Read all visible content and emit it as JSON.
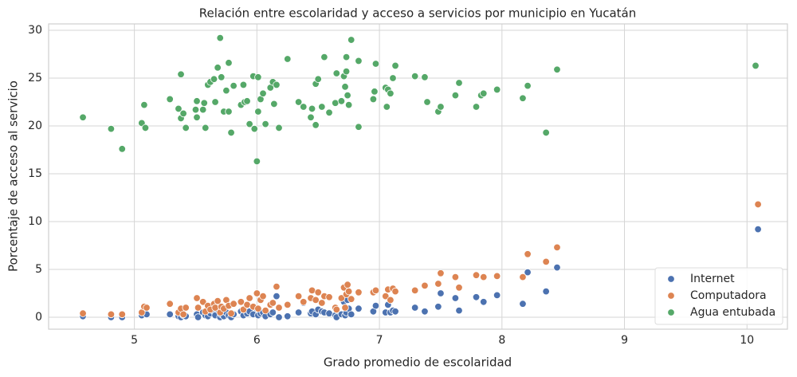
{
  "chart_data": {
    "type": "scatter",
    "title": "Relación entre escolaridad y acceso a servicios por municipio en Yucatán",
    "x_label": "Grado promedio de escolaridad",
    "y_label": "Porcentaje de acceso al servicio",
    "xlim": [
      4.3,
      10.33
    ],
    "ylim": [
      -1.25,
      30.67
    ],
    "xticks": [
      5,
      6,
      7,
      8,
      9,
      10
    ],
    "yticks": [
      0,
      5,
      10,
      15,
      20,
      25,
      30
    ],
    "grid": true,
    "legend": "lower right",
    "series": [
      {
        "name": "Internet",
        "color": "#4c72b0",
        "x": [
          4.58,
          4.81,
          4.9,
          5.06,
          5.08,
          5.1,
          5.29,
          5.36,
          5.38,
          5.4,
          5.42,
          5.51,
          5.52,
          5.56,
          5.58,
          5.6,
          5.62,
          5.65,
          5.66,
          5.68,
          5.7,
          5.71,
          5.73,
          5.75,
          5.77,
          5.79,
          5.81,
          5.87,
          5.89,
          5.92,
          5.94,
          5.97,
          6.0,
          6.01,
          6.03,
          6.05,
          6.07,
          6.11,
          6.13,
          6.16,
          6.18,
          6.25,
          6.34,
          6.38,
          6.44,
          6.45,
          6.48,
          6.5,
          6.53,
          6.55,
          6.59,
          6.64,
          6.65,
          6.69,
          6.71,
          6.72,
          6.73,
          6.74,
          6.75,
          6.77,
          6.83,
          6.95,
          6.97,
          7.05,
          7.07,
          7.09,
          7.11,
          7.13,
          7.29,
          7.37,
          7.48,
          7.5,
          7.62,
          7.65,
          7.79,
          7.85,
          7.96,
          8.17,
          8.21,
          8.36,
          8.45,
          10.09
        ],
        "values": [
          0.1,
          0,
          0,
          0.2,
          0.5,
          0.3,
          0.3,
          0.1,
          0,
          0.2,
          0.1,
          0.3,
          0,
          0.5,
          0.2,
          0.1,
          0.4,
          0.6,
          0.2,
          0.8,
          0,
          0.3,
          0.1,
          0.5,
          0.2,
          0,
          0.3,
          0.6,
          0.2,
          0.4,
          0.6,
          0.3,
          0.9,
          0.2,
          0.4,
          0.5,
          0.1,
          0.3,
          0.5,
          2.2,
          0,
          0.1,
          0.5,
          1.5,
          0.4,
          0.6,
          0.3,
          0.8,
          0.6,
          0.5,
          0.4,
          0.2,
          0,
          0.3,
          1.6,
          0.2,
          0.5,
          1.8,
          0.9,
          0.3,
          0.9,
          0.6,
          1.2,
          0.5,
          1.3,
          0.5,
          0.7,
          0.6,
          1.0,
          0.6,
          1.1,
          2.5,
          2.0,
          0.7,
          2.1,
          1.6,
          2.3,
          1.4,
          4.7,
          2.7,
          5.2,
          9.2
        ]
      },
      {
        "name": "Computadora",
        "color": "#dd8452",
        "x": [
          4.58,
          4.81,
          4.9,
          5.06,
          5.08,
          5.1,
          5.29,
          5.36,
          5.38,
          5.4,
          5.42,
          5.51,
          5.52,
          5.56,
          5.58,
          5.6,
          5.62,
          5.65,
          5.66,
          5.68,
          5.7,
          5.71,
          5.73,
          5.75,
          5.77,
          5.79,
          5.81,
          5.87,
          5.89,
          5.92,
          5.94,
          5.97,
          6.0,
          6.01,
          6.03,
          6.05,
          6.07,
          6.11,
          6.13,
          6.16,
          6.18,
          6.25,
          6.34,
          6.38,
          6.44,
          6.45,
          6.48,
          6.5,
          6.53,
          6.55,
          6.59,
          6.64,
          6.65,
          6.69,
          6.71,
          6.72,
          6.73,
          6.74,
          6.75,
          6.77,
          6.83,
          6.95,
          6.97,
          7.05,
          7.07,
          7.09,
          7.11,
          7.13,
          7.29,
          7.37,
          7.48,
          7.5,
          7.62,
          7.65,
          7.79,
          7.85,
          7.96,
          8.17,
          8.21,
          8.36,
          8.45,
          10.09
        ],
        "values": [
          0.4,
          0.3,
          0.3,
          0.5,
          1.1,
          1.0,
          1.4,
          0.5,
          0.9,
          0.3,
          1.0,
          2.0,
          1.0,
          1.6,
          0.6,
          1.2,
          0.8,
          1.4,
          1.0,
          1.7,
          0.5,
          1.1,
          0.9,
          1.8,
          1.2,
          0.4,
          1.4,
          1.6,
          0.8,
          1.3,
          2.0,
          1.1,
          2.5,
          0.9,
          1.8,
          2.2,
          0.7,
          1.3,
          1.5,
          3.2,
          1.0,
          1.3,
          2.2,
          1.6,
          2.0,
          2.8,
          1.8,
          2.6,
          1.5,
          2.2,
          2.1,
          1.0,
          0.8,
          2.0,
          3.1,
          1.0,
          2.4,
          3.4,
          2.7,
          1.9,
          2.6,
          2.6,
          2.8,
          2.2,
          2.9,
          1.8,
          3.0,
          2.7,
          2.8,
          3.3,
          3.5,
          4.6,
          4.2,
          3.1,
          4.4,
          4.2,
          4.3,
          4.2,
          6.6,
          5.8,
          7.3,
          11.8
        ]
      },
      {
        "name": "Agua entubada",
        "color": "#55a868",
        "x": [
          4.58,
          4.81,
          4.9,
          5.06,
          5.08,
          5.09,
          5.29,
          5.36,
          5.38,
          5.38,
          5.4,
          5.42,
          5.51,
          5.51,
          5.5,
          5.57,
          5.56,
          5.58,
          5.6,
          5.62,
          5.65,
          5.66,
          5.68,
          5.7,
          5.71,
          5.73,
          5.75,
          5.77,
          5.77,
          5.79,
          5.81,
          5.87,
          5.89,
          5.9,
          5.92,
          5.94,
          5.97,
          5.98,
          6.0,
          6.01,
          6.01,
          6.03,
          6.05,
          6.07,
          6.11,
          6.13,
          6.16,
          6.14,
          6.18,
          6.25,
          6.34,
          6.38,
          6.44,
          6.45,
          6.48,
          6.48,
          6.5,
          6.53,
          6.55,
          6.59,
          6.64,
          6.65,
          6.69,
          6.71,
          6.72,
          6.73,
          6.73,
          6.74,
          6.75,
          6.77,
          6.83,
          6.83,
          6.97,
          6.95,
          6.96,
          7.05,
          7.07,
          7.06,
          7.09,
          7.11,
          7.13,
          7.29,
          7.37,
          7.39,
          7.48,
          7.5,
          7.62,
          7.65,
          7.79,
          7.83,
          7.85,
          7.96,
          8.17,
          8.21,
          8.36,
          8.45,
          10.07
        ],
        "values": [
          20.9,
          19.7,
          17.6,
          20.3,
          22.2,
          19.8,
          22.8,
          21.8,
          20.8,
          25.4,
          21.3,
          19.8,
          22.6,
          20.9,
          21.7,
          22.4,
          21.7,
          19.8,
          24.3,
          24.6,
          24.9,
          22.5,
          26.1,
          29.2,
          25.1,
          21.5,
          23.7,
          21.5,
          26.6,
          19.3,
          24.2,
          22.2,
          24.3,
          22.5,
          22.6,
          20.2,
          25.2,
          19.7,
          16.3,
          25.1,
          21.5,
          22.8,
          23.4,
          20.2,
          24.0,
          24.6,
          24.3,
          22.3,
          19.8,
          27.0,
          22.5,
          22.0,
          20.9,
          21.8,
          24.4,
          20.1,
          24.9,
          22.0,
          27.2,
          21.4,
          22.4,
          25.5,
          22.6,
          25.2,
          24.1,
          27.2,
          25.7,
          23.2,
          22.2,
          29.0,
          26.8,
          19.9,
          26.5,
          22.8,
          23.6,
          24.0,
          23.8,
          22.0,
          23.4,
          25.0,
          26.3,
          25.2,
          25.1,
          22.5,
          21.5,
          22.0,
          23.2,
          24.5,
          22.0,
          23.2,
          23.4,
          23.8,
          22.9,
          24.2,
          19.3,
          25.9,
          26.3
        ]
      }
    ]
  }
}
